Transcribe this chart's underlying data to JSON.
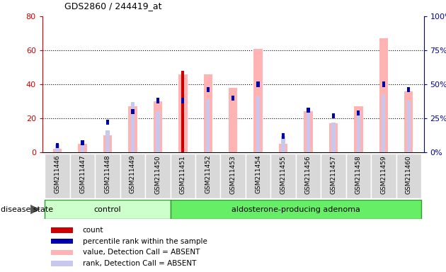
{
  "title": "GDS2860 / 244419_at",
  "samples": [
    "GSM211446",
    "GSM211447",
    "GSM211448",
    "GSM211449",
    "GSM211450",
    "GSM211451",
    "GSM211452",
    "GSM211453",
    "GSM211454",
    "GSM211455",
    "GSM211456",
    "GSM211457",
    "GSM211458",
    "GSM211459",
    "GSM211460"
  ],
  "groups": [
    "control",
    "control",
    "control",
    "control",
    "control",
    "aldosterone-producing adenoma",
    "aldosterone-producing adenoma",
    "aldosterone-producing adenoma",
    "aldosterone-producing adenoma",
    "aldosterone-producing adenoma",
    "aldosterone-producing adenoma",
    "aldosterone-producing adenoma",
    "aldosterone-producing adenoma",
    "aldosterone-producing adenoma",
    "aldosterone-producing adenoma"
  ],
  "count": [
    0,
    0,
    0,
    0,
    0,
    48,
    0,
    0,
    0,
    0,
    0,
    0,
    0,
    0,
    0
  ],
  "percentile_rank": [
    5,
    7,
    22,
    30,
    38,
    38,
    46,
    40,
    50,
    12,
    31,
    27,
    29,
    50,
    46
  ],
  "value_absent": [
    2,
    5,
    10,
    27,
    30,
    46,
    46,
    38,
    61,
    5,
    24,
    17,
    27,
    67,
    36
  ],
  "rank_absent": [
    6,
    8,
    16,
    37,
    30,
    0,
    39,
    0,
    41,
    12,
    31,
    22,
    29,
    42,
    38
  ],
  "ylim_left": [
    0,
    80
  ],
  "ylim_right": [
    0,
    100
  ],
  "left_ticks": [
    0,
    20,
    40,
    60,
    80
  ],
  "right_ticks": [
    0,
    25,
    50,
    75,
    100
  ],
  "color_count": "#cc0000",
  "color_percentile": "#0000aa",
  "color_value_absent": "#ffb3b3",
  "color_rank_absent": "#c8c8ee",
  "bg_plot": "#ffffff",
  "bg_label_control": "#ccffcc",
  "bg_label_adenoma": "#66ee66",
  "bg_label_gray": "#d8d8d8",
  "control_label": "control",
  "adenoma_label": "aldosterone-producing adenoma",
  "disease_state_label": "disease state",
  "legend_count": "count",
  "legend_percentile": "percentile rank within the sample",
  "legend_value": "value, Detection Call = ABSENT",
  "legend_rank": "rank, Detection Call = ABSENT",
  "n_control": 5
}
